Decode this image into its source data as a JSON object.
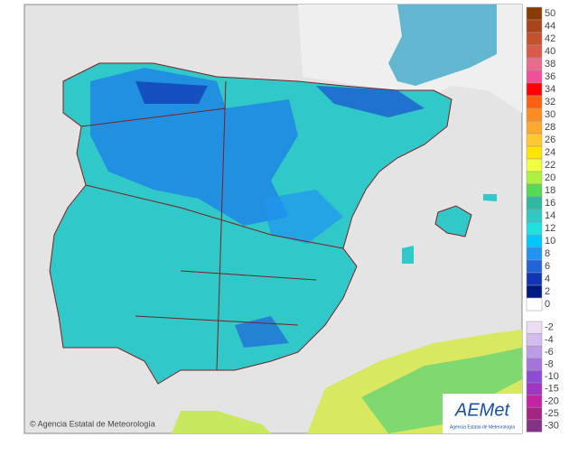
{
  "copyright": "© Agencia Estatal de Meteorología",
  "logo": {
    "name": "AEMet",
    "subtitle": "Agencia Estatal de Meteorología"
  },
  "legend": {
    "items": [
      {
        "label": "50",
        "color": "#8a3c00"
      },
      {
        "label": "44",
        "color": "#a84418"
      },
      {
        "label": "42",
        "color": "#c4502c"
      },
      {
        "label": "40",
        "color": "#d85a48"
      },
      {
        "label": "38",
        "color": "#e86c8c"
      },
      {
        "label": "36",
        "color": "#f0509a"
      },
      {
        "label": "34",
        "color": "#ff0000"
      },
      {
        "label": "32",
        "color": "#ff6010"
      },
      {
        "label": "30",
        "color": "#ff8c20"
      },
      {
        "label": "28",
        "color": "#ffa830"
      },
      {
        "label": "26",
        "color": "#ffc830"
      },
      {
        "label": "24",
        "color": "#ffe400"
      },
      {
        "label": "22",
        "color": "#f0ff40"
      },
      {
        "label": "20",
        "color": "#b0f040"
      },
      {
        "label": "18",
        "color": "#58d858"
      },
      {
        "label": "16",
        "color": "#30b8a0"
      },
      {
        "label": "14",
        "color": "#30c8c0"
      },
      {
        "label": "12",
        "color": "#20e0e0"
      },
      {
        "label": "10",
        "color": "#00c4ff"
      },
      {
        "label": "8",
        "color": "#2094f0"
      },
      {
        "label": "6",
        "color": "#2064d8"
      },
      {
        "label": "4",
        "color": "#1034b4"
      },
      {
        "label": "2",
        "color": "#001a80"
      },
      {
        "label": "0",
        "color": "#ffffff"
      }
    ],
    "negative_items": [
      {
        "label": "-2",
        "color": "#ecdcf4"
      },
      {
        "label": "-4",
        "color": "#d4bcec"
      },
      {
        "label": "-6",
        "color": "#bc9ce4"
      },
      {
        "label": "-8",
        "color": "#a474dc"
      },
      {
        "label": "-10",
        "color": "#8c4cd4"
      },
      {
        "label": "-15",
        "color": "#a434c4"
      },
      {
        "label": "-20",
        "color": "#c424a4"
      },
      {
        "label": "-25",
        "color": "#a42484"
      },
      {
        "label": "-30",
        "color": "#843484"
      }
    ]
  }
}
